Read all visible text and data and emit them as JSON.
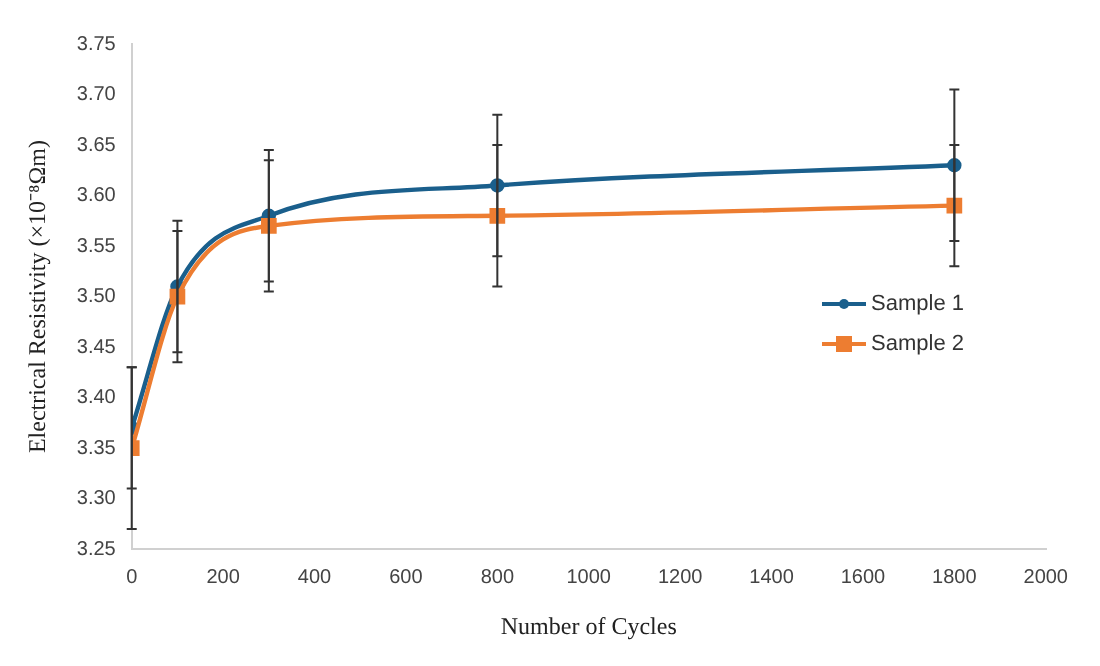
{
  "chart_data": {
    "type": "line",
    "xlabel": "Number of Cycles",
    "ylabel": "Electrical Resistivity (×10⁻⁸Ωm)",
    "x": [
      0,
      100,
      300,
      800,
      1800
    ],
    "series": [
      {
        "name": "Sample 1",
        "color": "#1a5f8c",
        "marker": "circle",
        "values": [
          3.37,
          3.51,
          3.58,
          3.61,
          3.63
        ],
        "errors": [
          0.06,
          0.065,
          0.065,
          0.07,
          0.075
        ]
      },
      {
        "name": "Sample 2",
        "color": "#ed7d31",
        "marker": "square",
        "values": [
          3.35,
          3.5,
          3.57,
          3.58,
          3.59
        ],
        "errors": [
          0.08,
          0.065,
          0.065,
          0.07,
          0.06
        ]
      }
    ],
    "xlim": [
      0,
      2000
    ],
    "xticks": [
      0,
      200,
      400,
      600,
      800,
      1000,
      1200,
      1400,
      1600,
      1800,
      2000
    ],
    "ylim": [
      3.25,
      3.75
    ],
    "yticks": [
      3.25,
      {
        "value": 3.3,
        "label": "3.30"
      },
      3.35,
      {
        "value": 3.4,
        "label": "3.40"
      },
      3.45,
      {
        "value": 3.5,
        "label": "3.50"
      },
      3.55,
      {
        "value": 3.6,
        "label": "3.60"
      },
      3.65,
      {
        "value": 3.7,
        "label": "3.70"
      },
      3.75
    ],
    "grid": false,
    "legend": "right"
  }
}
